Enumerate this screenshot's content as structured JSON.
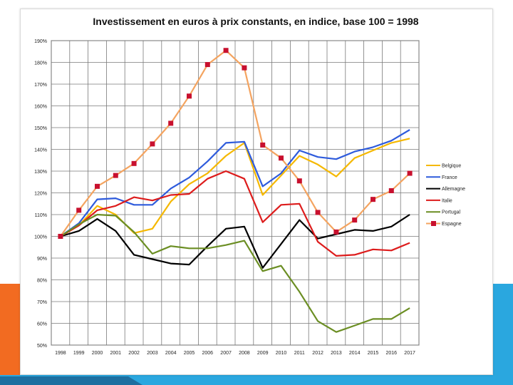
{
  "colors": {
    "accent_orange": "#f26b21",
    "accent_blue": "#2aa7df",
    "accent_dark_blue": "#1d6fa0"
  },
  "chart_data": {
    "type": "line",
    "title": "Investissement en euros à prix constants, en indice, base 100 = 1998",
    "xlabel": "",
    "ylabel": "",
    "ylim": [
      50,
      190
    ],
    "ytick_labels": [
      "50%",
      "60%",
      "70%",
      "80%",
      "90%",
      "100%",
      "110%",
      "120%",
      "130%",
      "140%",
      "150%",
      "160%",
      "170%",
      "180%",
      "190%"
    ],
    "categories": [
      "1998",
      "1999",
      "2000",
      "2001",
      "2002",
      "2003",
      "2004",
      "2005",
      "2006",
      "2007",
      "2008",
      "2009",
      "2010",
      "2011",
      "2012",
      "2013",
      "2014",
      "2015",
      "2016",
      "2017"
    ],
    "grid": true,
    "legend_position": "right",
    "series": [
      {
        "name": "Belgique",
        "color": "#f5b800",
        "marker": "none",
        "values": [
          100,
          105,
          114,
          110,
          101.5,
          103.5,
          116,
          124,
          129,
          137,
          143,
          119,
          128,
          137,
          133,
          127.5,
          136,
          139.5,
          143,
          145
        ]
      },
      {
        "name": "France",
        "color": "#2e5bdc",
        "marker": "none",
        "values": [
          100,
          106,
          117,
          117.5,
          114.5,
          114.5,
          122,
          127,
          134.5,
          143,
          143.5,
          123,
          129,
          139.5,
          136.5,
          135.5,
          139,
          141,
          144,
          149
        ]
      },
      {
        "name": "Allemagne",
        "color": "#000000",
        "marker": "none",
        "values": [
          100,
          102.5,
          108,
          102.5,
          91.5,
          89.5,
          87.5,
          87,
          95.5,
          103.5,
          104.5,
          85.5,
          96.5,
          107.5,
          99,
          101,
          103,
          102.5,
          104.5,
          110
        ]
      },
      {
        "name": "Italie",
        "color": "#dd1c1c",
        "marker": "none",
        "values": [
          100,
          105,
          112,
          114,
          118,
          116.5,
          119,
          119.5,
          126.5,
          130,
          126.5,
          106.5,
          114.5,
          115,
          97.5,
          91,
          91.5,
          94,
          93.5,
          97
        ]
      },
      {
        "name": "Portugal",
        "color": "#6b8e23",
        "marker": "none",
        "values": [
          100,
          105.5,
          110,
          109.5,
          102,
          92,
          95.5,
          94.5,
          94.5,
          96,
          98,
          84,
          86.5,
          74.5,
          61,
          56,
          59,
          62,
          62,
          67
        ]
      },
      {
        "name": "Espagne",
        "color": "#f4a460",
        "marker": "square",
        "marker_color": "#c8102e",
        "values": [
          100,
          112,
          123,
          128,
          133.5,
          142.5,
          152,
          164.5,
          179,
          185.5,
          177.5,
          142,
          136,
          125.5,
          111,
          102,
          107.5,
          117,
          121,
          129
        ]
      }
    ]
  }
}
